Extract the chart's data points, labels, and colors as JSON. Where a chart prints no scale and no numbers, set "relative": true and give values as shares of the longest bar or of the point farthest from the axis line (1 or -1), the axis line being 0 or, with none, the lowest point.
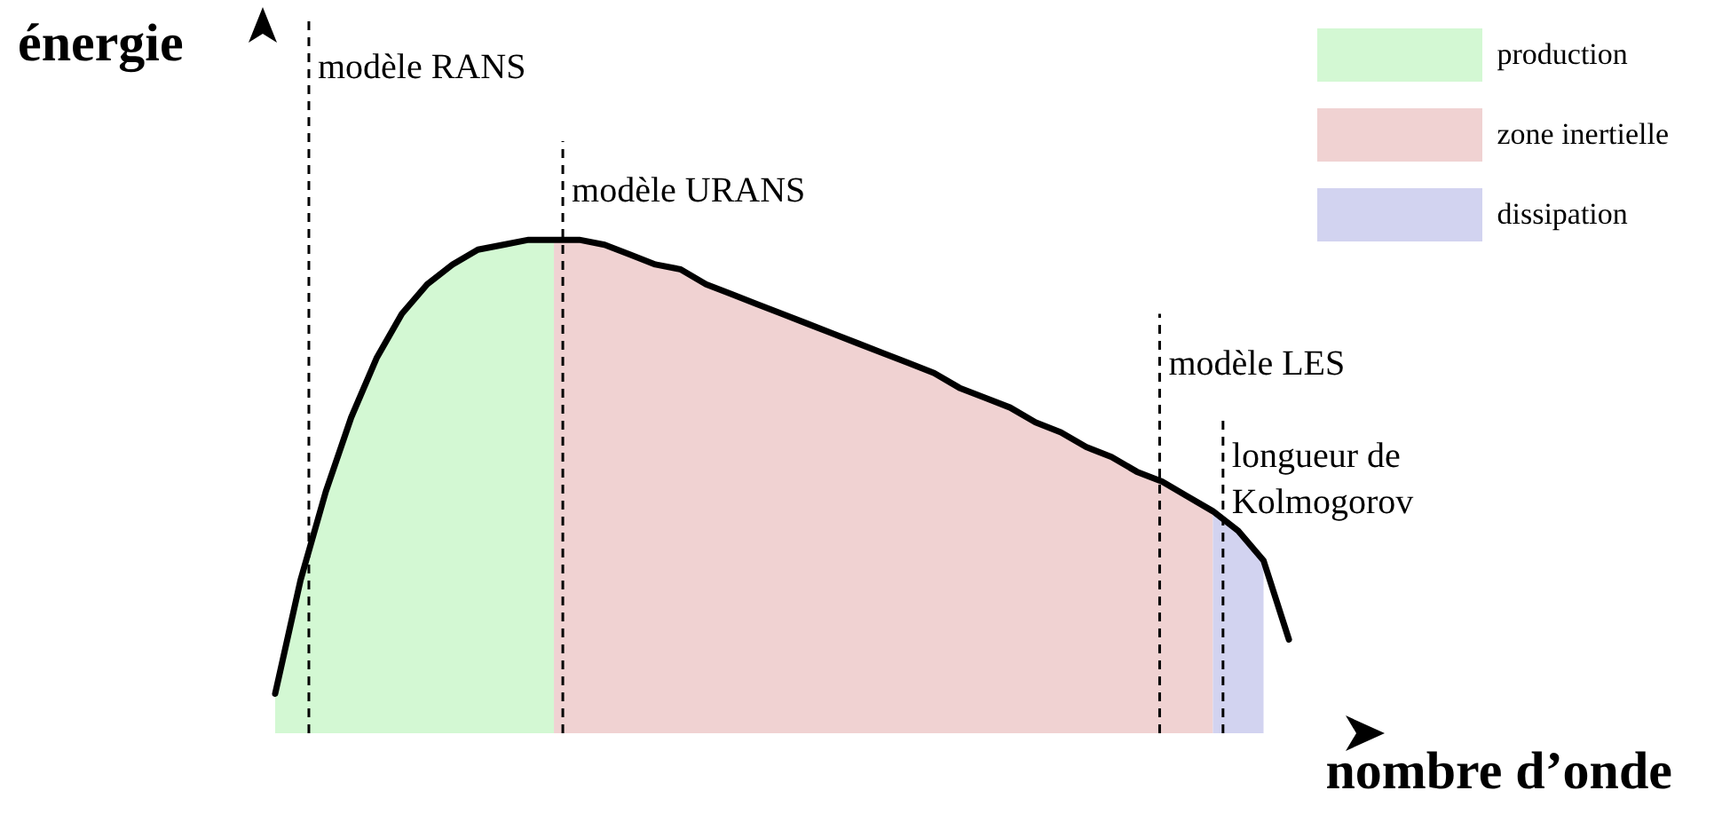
{
  "chart_data": {
    "type": "area",
    "relative": true,
    "xlabel": "nombre d’onde",
    "ylabel": "énergie",
    "legend": "top right",
    "marker": "none",
    "line_style": "solid",
    "categories": [
      null,
      null,
      null,
      null,
      null,
      null,
      null,
      null,
      null,
      null,
      null,
      null,
      null,
      null,
      null,
      null,
      null,
      null,
      null,
      null,
      null,
      null,
      null,
      null,
      null,
      null,
      null,
      null,
      null,
      null,
      null,
      null,
      null,
      null,
      null,
      null,
      null,
      null,
      null,
      null,
      null
    ],
    "series": [
      {
        "name": "production",
        "color": "#d3f8d3",
        "values": [
          0.08,
          0.31,
          0.49,
          0.64,
          0.76,
          0.85,
          0.91,
          0.95,
          0.98,
          0.99,
          1,
          1,
          null,
          null,
          null,
          null,
          null,
          null,
          null,
          null,
          null,
          null,
          null,
          null,
          null,
          null,
          null,
          null,
          null,
          null,
          null,
          null,
          null,
          null,
          null,
          null,
          null,
          null,
          null,
          null,
          null
        ]
      },
      {
        "name": "zone inertielle",
        "color": "#f0d2d2",
        "values": [
          null,
          null,
          null,
          null,
          null,
          null,
          null,
          null,
          null,
          null,
          null,
          1,
          1,
          0.99,
          0.97,
          0.95,
          0.94,
          0.91,
          0.89,
          0.87,
          0.85,
          0.83,
          0.81,
          0.79,
          0.77,
          0.75,
          0.73,
          0.7,
          0.68,
          0.66,
          0.63,
          0.61,
          0.58,
          0.56,
          0.53,
          0.51,
          0.48,
          0.45,
          null,
          null,
          null
        ]
      },
      {
        "name": "dissipation",
        "color": "#d2d3f0",
        "values": [
          null,
          null,
          null,
          null,
          null,
          null,
          null,
          null,
          null,
          null,
          null,
          null,
          null,
          null,
          null,
          null,
          null,
          null,
          null,
          null,
          null,
          null,
          null,
          null,
          null,
          null,
          null,
          null,
          null,
          null,
          null,
          null,
          null,
          null,
          null,
          null,
          null,
          0.45,
          0.41,
          0.35,
          null
        ]
      },
      {
        "type": "line",
        "color": "#000000",
        "values": [
          0.08,
          0.31,
          0.49,
          0.64,
          0.76,
          0.85,
          0.91,
          0.95,
          0.98,
          0.99,
          1,
          1,
          1,
          0.99,
          0.97,
          0.95,
          0.94,
          0.91,
          0.89,
          0.87,
          0.85,
          0.83,
          0.81,
          0.79,
          0.77,
          0.75,
          0.73,
          0.7,
          0.68,
          0.66,
          0.63,
          0.61,
          0.58,
          0.56,
          0.53,
          0.51,
          0.48,
          0.45,
          0.41,
          0.35,
          0.19
        ]
      }
    ],
    "ref_lines": [
      {
        "axis": "x",
        "label": "modèle RANS",
        "line_style": "dashed",
        "color": "#000000"
      },
      {
        "axis": "x",
        "label": "modèle URANS",
        "line_style": "dashed",
        "color": "#000000"
      },
      {
        "axis": "x",
        "label": "modèle LES",
        "line_style": "dashed",
        "color": "#000000"
      },
      {
        "axis": "x",
        "label": "longueur de Kolmogorov",
        "line_style": "dashed",
        "color": "#000000"
      }
    ]
  }
}
